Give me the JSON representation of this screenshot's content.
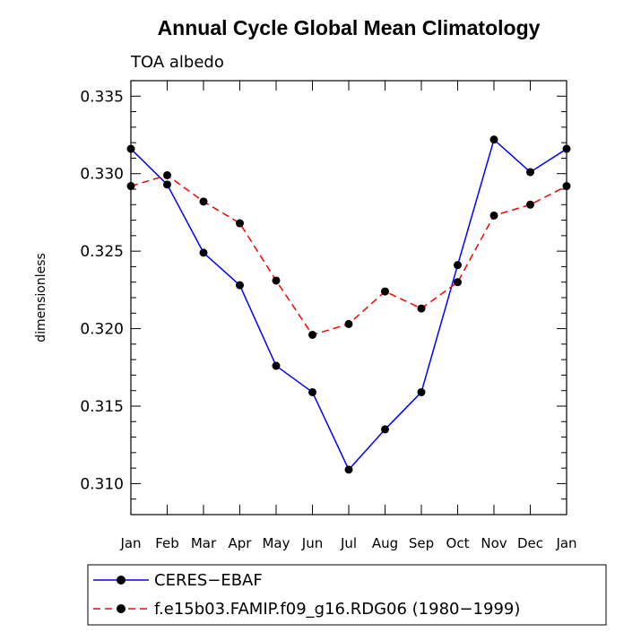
{
  "chart_data": {
    "type": "line",
    "title": "Annual Cycle Global Mean Climatology",
    "subtitle": "TOA albedo",
    "xlabel": "",
    "ylabel": "dimensionless",
    "categories": [
      "Jan",
      "Feb",
      "Mar",
      "Apr",
      "May",
      "Jun",
      "Jul",
      "Aug",
      "Sep",
      "Oct",
      "Nov",
      "Dec",
      "Jan"
    ],
    "ylim": [
      0.308,
      0.336
    ],
    "yticks": [
      "0.310",
      "0.315",
      "0.320",
      "0.325",
      "0.330",
      "0.335"
    ],
    "grid": false,
    "legend_placement": "bottom",
    "series": [
      {
        "name": "CERES−EBAF",
        "color": "#0000ff",
        "dash": "solid",
        "values": [
          0.3316,
          0.3293,
          0.3249,
          0.3228,
          0.3176,
          0.3159,
          0.3109,
          0.3135,
          0.3159,
          0.3241,
          0.3322,
          0.3301,
          0.3316
        ]
      },
      {
        "name": "f.e15b03.FAMIP.f09_g16.RDG06 (1980−1999)",
        "color": "#ff0000",
        "dash": "dashed",
        "values": [
          0.3292,
          0.3299,
          0.3282,
          0.3268,
          0.3231,
          0.3196,
          0.3203,
          0.3224,
          0.3213,
          0.323,
          0.3273,
          0.328,
          0.3292
        ]
      }
    ]
  }
}
